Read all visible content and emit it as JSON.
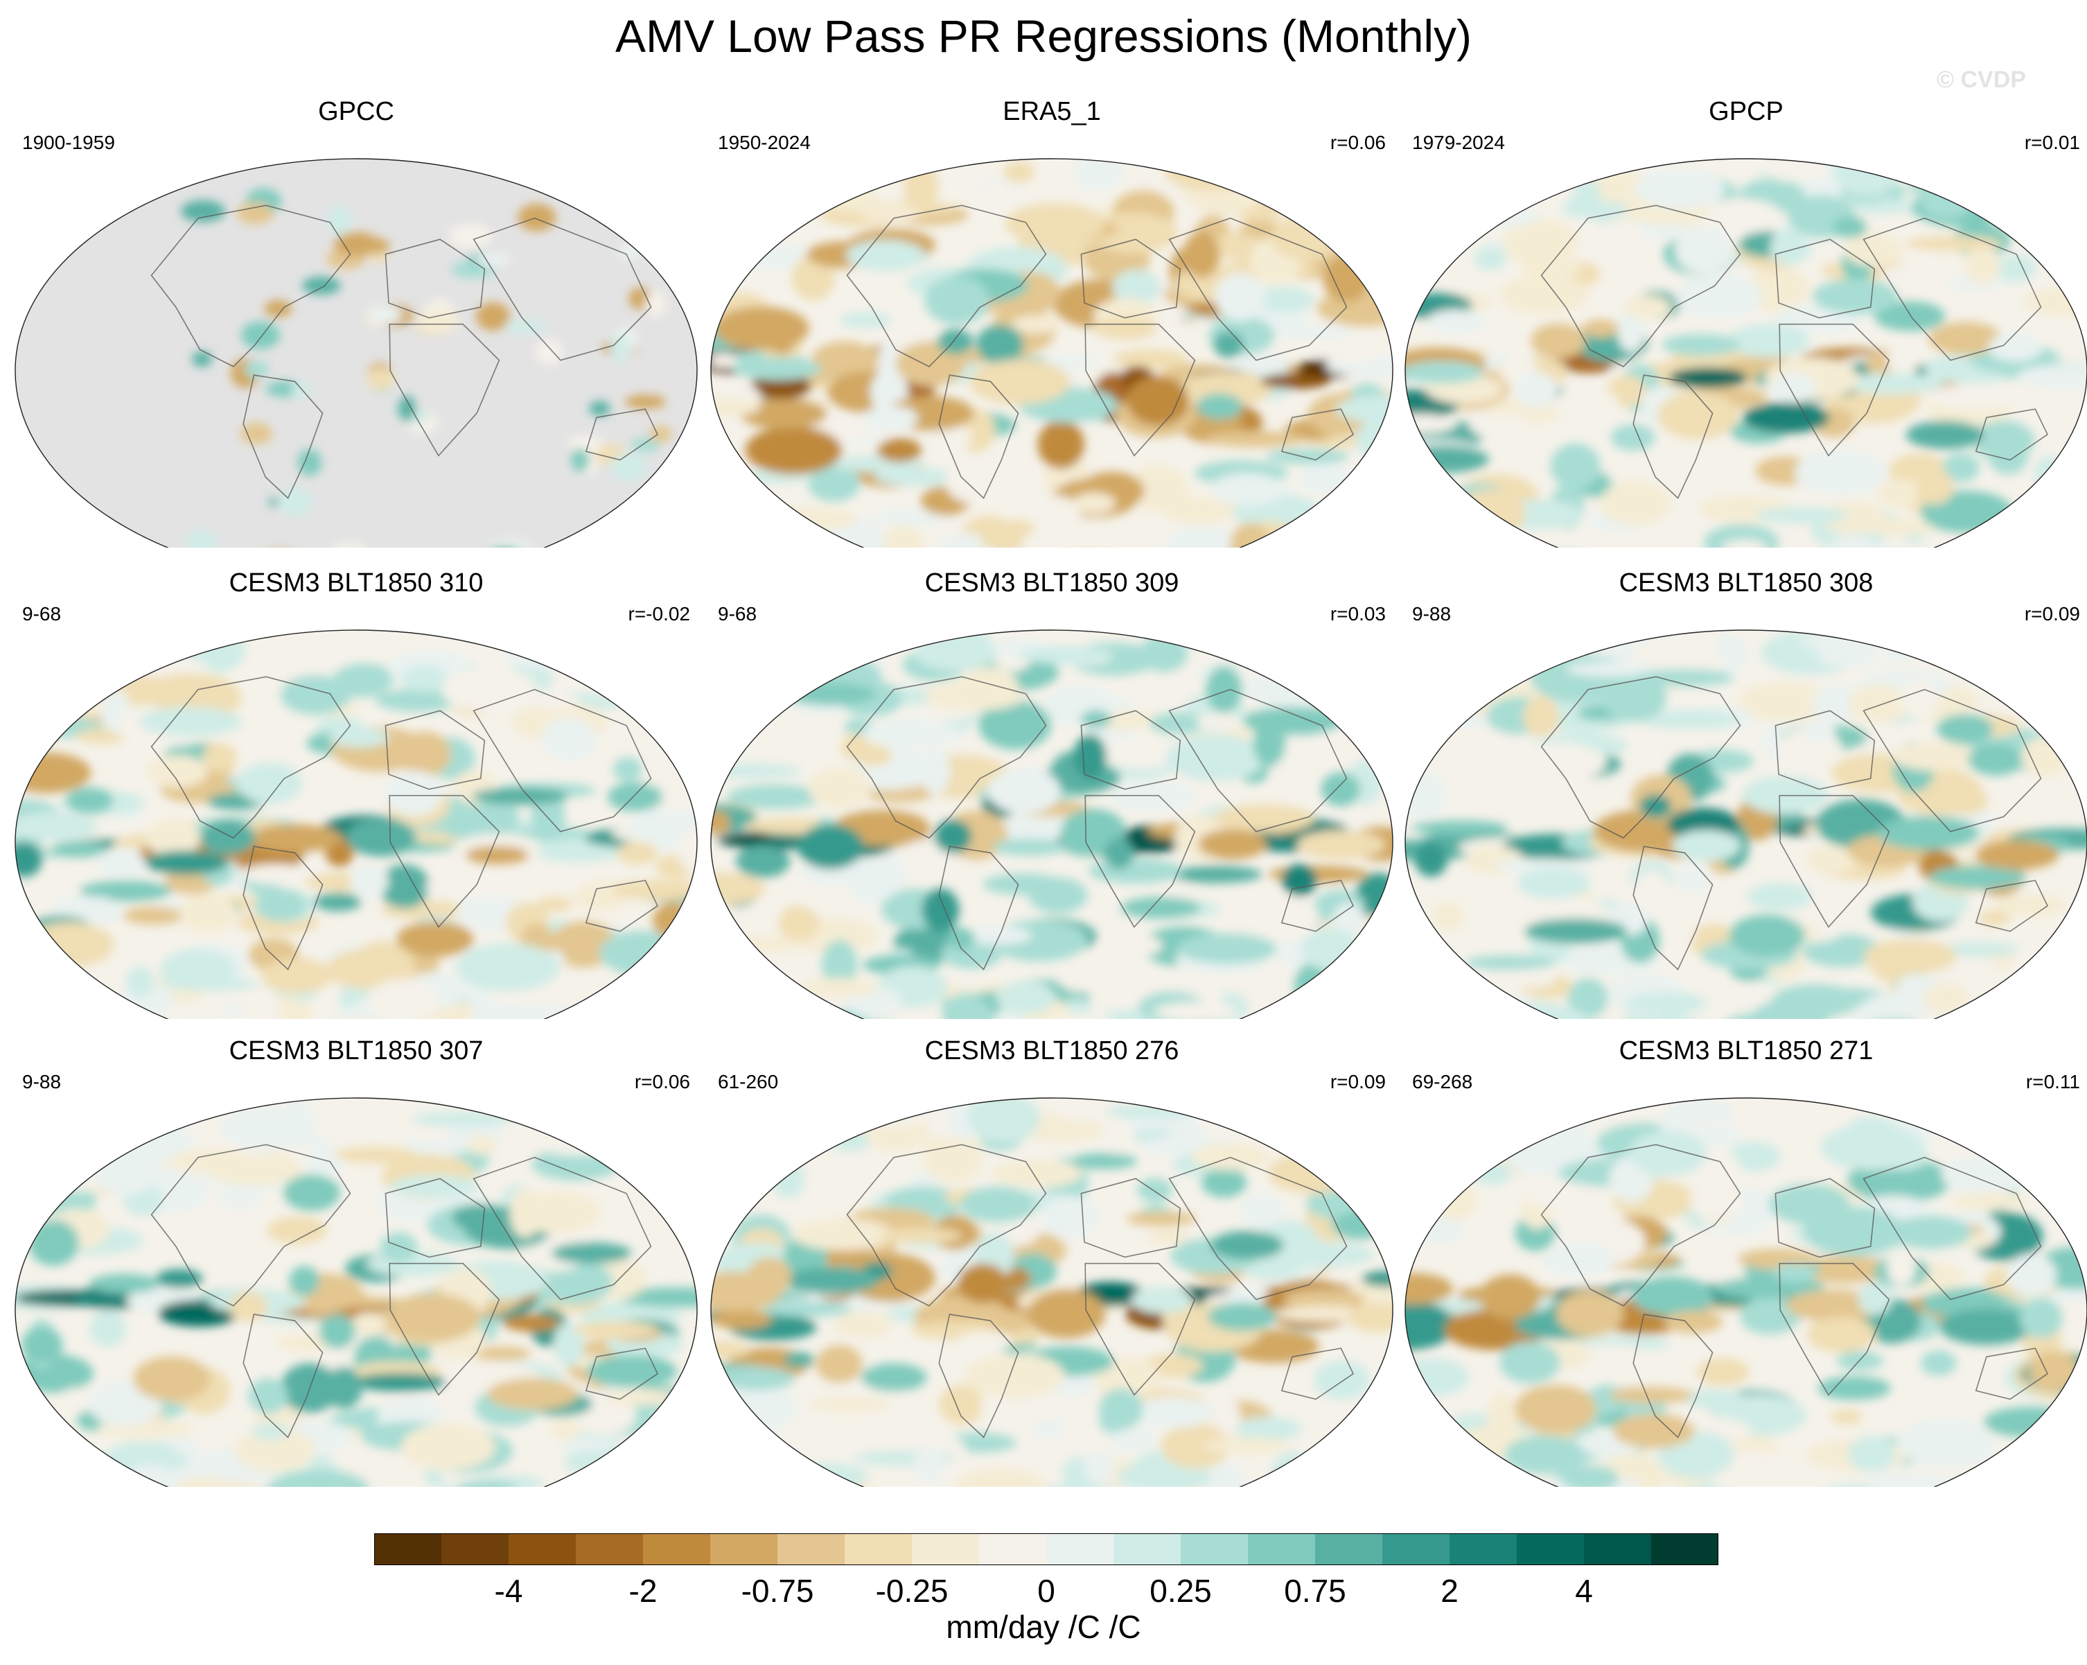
{
  "title": "AMV Low Pass PR Regressions (Monthly)",
  "watermark": "© CVDP",
  "panels": [
    {
      "title": "GPCC",
      "period": "1900-1959",
      "corr": "",
      "land_only": true,
      "seed": 3,
      "bias": 0.1
    },
    {
      "title": "ERA5_1",
      "period": "1950-2024",
      "corr": "r=0.06",
      "land_only": false,
      "seed": 11,
      "bias": -0.3
    },
    {
      "title": "GPCP",
      "period": "1979-2024",
      "corr": "r=0.01",
      "land_only": false,
      "seed": 19,
      "bias": 0.2
    },
    {
      "title": "CESM3 BLT1850 310",
      "period": "9-68",
      "corr": "r=-0.02",
      "land_only": false,
      "seed": 23,
      "bias": 0.0
    },
    {
      "title": "CESM3 BLT1850 309",
      "period": "9-68",
      "corr": "r=0.03",
      "land_only": false,
      "seed": 31,
      "bias": 0.3
    },
    {
      "title": "CESM3 BLT1850 308",
      "period": "9-88",
      "corr": "r=0.09",
      "land_only": false,
      "seed": 37,
      "bias": 0.15
    },
    {
      "title": "CESM3 BLT1850 307",
      "period": "9-88",
      "corr": "r=0.06",
      "land_only": false,
      "seed": 41,
      "bias": 0.1
    },
    {
      "title": "CESM3 BLT1850 276",
      "period": "61-260",
      "corr": "r=0.09",
      "land_only": false,
      "seed": 47,
      "bias": 0.05
    },
    {
      "title": "CESM3 BLT1850 271",
      "period": "69-268",
      "corr": "r=0.11",
      "land_only": false,
      "seed": 53,
      "bias": 0.1
    }
  ],
  "colorbar": {
    "colors": [
      "#543005",
      "#70400c",
      "#8c5210",
      "#a86b25",
      "#c08a3d",
      "#d2a863",
      "#e3c690",
      "#f0deb4",
      "#f5ecd4",
      "#f5f2ea",
      "#eaf2f0",
      "#d0ece6",
      "#a8ddd4",
      "#80cbbd",
      "#58b0a3",
      "#359a8d",
      "#1b8277",
      "#066b5f",
      "#00574b",
      "#003c30"
    ],
    "labels": [
      {
        "text": "-4",
        "boundary": 2
      },
      {
        "text": "-2",
        "boundary": 4
      },
      {
        "text": "-0.75",
        "boundary": 6
      },
      {
        "text": "-0.25",
        "boundary": 8
      },
      {
        "text": "0",
        "boundary": 10
      },
      {
        "text": "0.25",
        "boundary": 12
      },
      {
        "text": "0.75",
        "boundary": 14
      },
      {
        "text": "2",
        "boundary": 16
      },
      {
        "text": "4",
        "boundary": 18
      }
    ],
    "units": "mm/day /C /C"
  }
}
